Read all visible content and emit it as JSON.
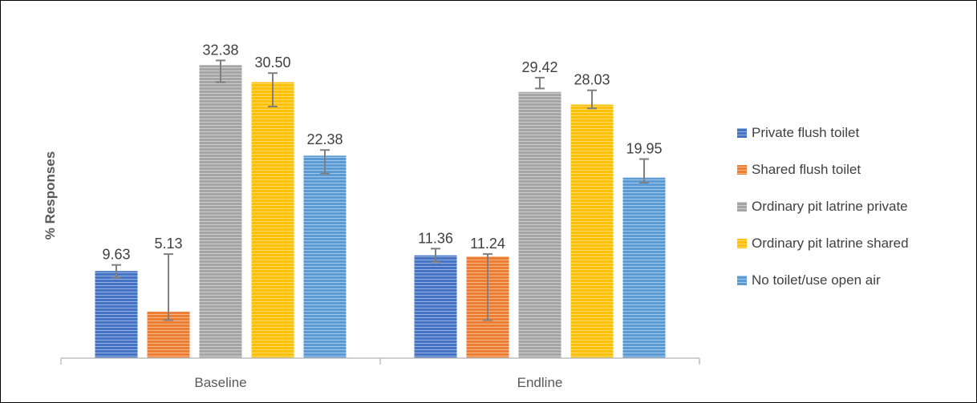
{
  "chart_data": {
    "type": "bar",
    "title": "",
    "xlabel": "",
    "ylabel": "% Responses",
    "categories": [
      "Baseline",
      "Endline"
    ],
    "series": [
      {
        "name": "Private flush toilet",
        "values": [
          9.63,
          11.36
        ],
        "error_low": [
          8.9,
          10.6
        ],
        "error_high": [
          10.3,
          12.1
        ],
        "labels": [
          "9.63",
          "11.36"
        ],
        "color": "#4472C4"
      },
      {
        "name": "Shared flush toilet",
        "values": [
          5.13,
          11.24
        ],
        "error_low": [
          4.2,
          4.2
        ],
        "error_high": [
          11.5,
          11.5
        ],
        "labels": [
          "5.13",
          "11.24"
        ],
        "color": "#ED7D31"
      },
      {
        "name": "Ordinary pit latrine private",
        "values": [
          32.38,
          29.42
        ],
        "error_low": [
          30.5,
          29.8
        ],
        "error_high": [
          32.9,
          31.0
        ],
        "labels": [
          "32.38",
          "29.42"
        ],
        "color": "#A5A5A5"
      },
      {
        "name": "Ordinary pit latrine shared",
        "values": [
          30.5,
          28.03
        ],
        "error_low": [
          27.8,
          27.6
        ],
        "error_high": [
          31.5,
          29.6
        ],
        "labels": [
          "30.50",
          "28.03"
        ],
        "color": "#FFC000"
      },
      {
        "name": "No toilet/use open air",
        "values": [
          22.38,
          19.95
        ],
        "error_low": [
          20.4,
          19.4
        ],
        "error_high": [
          23.0,
          22.0
        ],
        "labels": [
          "22.38",
          "19.95"
        ],
        "color": "#5B9BD5"
      }
    ],
    "ylim": [
      0,
      37.1
    ],
    "grid": false,
    "legend_position": "right"
  }
}
